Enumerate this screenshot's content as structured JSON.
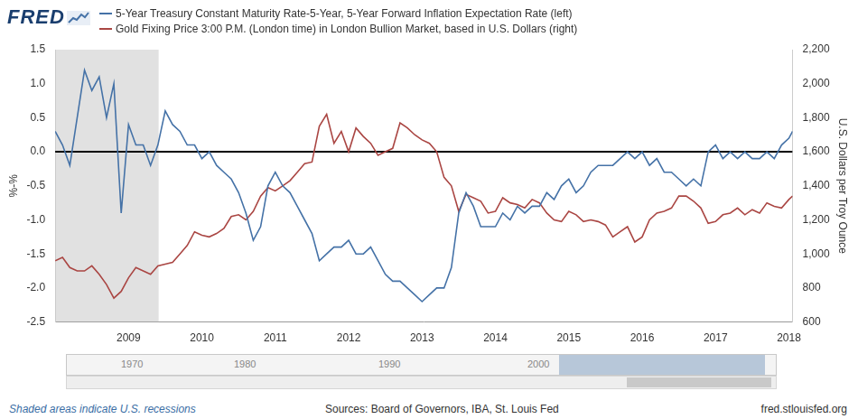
{
  "logo": "FRED",
  "chart_data": {
    "type": "line",
    "legend": "top",
    "grid": false,
    "x": [
      2008.0,
      2008.1,
      2008.2,
      2008.3,
      2008.4,
      2008.5,
      2008.6,
      2008.7,
      2008.8,
      2008.9,
      2009.0,
      2009.1,
      2009.2,
      2009.3,
      2009.4,
      2009.5,
      2009.6,
      2009.7,
      2009.8,
      2009.9,
      2010.0,
      2010.1,
      2010.2,
      2010.3,
      2010.4,
      2010.5,
      2010.6,
      2010.7,
      2010.8,
      2010.9,
      2011.0,
      2011.1,
      2011.2,
      2011.3,
      2011.4,
      2011.5,
      2011.6,
      2011.7,
      2011.8,
      2011.9,
      2012.0,
      2012.1,
      2012.2,
      2012.3,
      2012.4,
      2012.5,
      2012.6,
      2012.7,
      2012.8,
      2012.9,
      2013.0,
      2013.1,
      2013.2,
      2013.3,
      2013.4,
      2013.5,
      2013.6,
      2013.7,
      2013.8,
      2013.9,
      2014.0,
      2014.1,
      2014.2,
      2014.3,
      2014.4,
      2014.5,
      2014.6,
      2014.7,
      2014.8,
      2014.9,
      2015.0,
      2015.1,
      2015.2,
      2015.3,
      2015.4,
      2015.5,
      2015.6,
      2015.7,
      2015.8,
      2015.9,
      2016.0,
      2016.1,
      2016.2,
      2016.3,
      2016.4,
      2016.5,
      2016.6,
      2016.7,
      2016.8,
      2016.9,
      2017.0,
      2017.1,
      2017.2,
      2017.3,
      2017.4,
      2017.5,
      2017.6,
      2017.7,
      2017.8,
      2017.9,
      2018.0,
      2018.05
    ],
    "xlim": [
      2008.0,
      2018.05
    ],
    "xticks": [
      2009,
      2010,
      2011,
      2012,
      2013,
      2014,
      2015,
      2016,
      2017,
      2018
    ],
    "y_label": "%-%",
    "ylim": [
      -2.5,
      1.5
    ],
    "yticks": [
      -2.5,
      {
        "value": -2,
        "label": "-2.0"
      },
      -1.5,
      {
        "value": -1,
        "label": "-1.0"
      },
      -0.5,
      {
        "value": 0,
        "label": "0.0"
      },
      0.5,
      {
        "value": 1,
        "label": "1.0"
      },
      1.5
    ],
    "y2_label": "U.S. Dollars per Troy Ounce",
    "y2lim": [
      600,
      2200
    ],
    "y2ticks": [
      600,
      800,
      {
        "value": 1000,
        "label": "1,000"
      },
      {
        "value": 1200,
        "label": "1,200"
      },
      {
        "value": 1400,
        "label": "1,400"
      },
      {
        "value": 1600,
        "label": "1,600"
      },
      {
        "value": 1800,
        "label": "1,800"
      },
      {
        "value": 2000,
        "label": "2,000"
      },
      {
        "value": 2200,
        "label": "2,200"
      }
    ],
    "reference_line": 0,
    "recessions": [
      [
        2008.0,
        2009.41
      ]
    ],
    "recession_note": "Shaded areas indicate U.S. recessions",
    "series": [
      {
        "name": "5-Year Treasury Constant Maturity Rate-5-Year, 5-Year Forward Inflation Expectation Rate (left)",
        "color": "#4572a7",
        "axis": "y",
        "values": [
          0.3,
          0.1,
          -0.2,
          0.5,
          1.2,
          0.9,
          1.1,
          0.5,
          1.0,
          -0.9,
          0.4,
          0.1,
          0.1,
          -0.2,
          0.1,
          0.6,
          0.4,
          0.3,
          0.1,
          0.1,
          -0.1,
          0.0,
          -0.2,
          -0.3,
          -0.4,
          -0.6,
          -0.9,
          -1.3,
          -1.1,
          -0.5,
          -0.3,
          -0.5,
          -0.6,
          -0.8,
          -1.0,
          -1.2,
          -1.6,
          -1.5,
          -1.4,
          -1.4,
          -1.3,
          -1.5,
          -1.5,
          -1.4,
          -1.6,
          -1.8,
          -1.9,
          -1.9,
          -2.0,
          -2.1,
          -2.2,
          -2.1,
          -2.0,
          -2.0,
          -1.7,
          -0.9,
          -0.6,
          -0.8,
          -1.1,
          -1.1,
          -1.1,
          -0.9,
          -1.0,
          -0.8,
          -0.9,
          -0.8,
          -0.8,
          -0.6,
          -0.7,
          -0.5,
          -0.4,
          -0.6,
          -0.5,
          -0.3,
          -0.2,
          -0.2,
          -0.2,
          -0.1,
          0.0,
          -0.1,
          0.0,
          -0.2,
          -0.1,
          -0.3,
          -0.3,
          -0.4,
          -0.5,
          -0.4,
          -0.5,
          0.0,
          0.1,
          -0.1,
          0.0,
          -0.1,
          0.0,
          -0.1,
          -0.1,
          0.0,
          -0.1,
          0.1,
          0.2,
          0.3
        ]
      },
      {
        "name": "Gold Fixing Price 3:00 P.M. (London time) in London Bullion Market, based in U.S. Dollars (right)",
        "color": "#aa4643",
        "axis": "y2",
        "values": [
          960,
          980,
          920,
          900,
          900,
          930,
          880,
          820,
          740,
          780,
          860,
          920,
          900,
          880,
          930,
          940,
          950,
          1000,
          1050,
          1130,
          1110,
          1100,
          1120,
          1150,
          1220,
          1230,
          1200,
          1250,
          1340,
          1390,
          1370,
          1400,
          1430,
          1480,
          1530,
          1540,
          1750,
          1820,
          1650,
          1720,
          1600,
          1740,
          1690,
          1650,
          1580,
          1600,
          1620,
          1770,
          1740,
          1700,
          1670,
          1650,
          1600,
          1450,
          1400,
          1250,
          1350,
          1330,
          1310,
          1240,
          1250,
          1330,
          1300,
          1290,
          1270,
          1320,
          1300,
          1240,
          1200,
          1190,
          1250,
          1230,
          1190,
          1200,
          1190,
          1170,
          1100,
          1130,
          1160,
          1070,
          1100,
          1200,
          1240,
          1250,
          1270,
          1340,
          1340,
          1310,
          1270,
          1180,
          1190,
          1230,
          1240,
          1270,
          1230,
          1260,
          1240,
          1300,
          1280,
          1270,
          1320,
          1340
        ]
      }
    ]
  },
  "navigator": {
    "labels": [
      {
        "text": "1970"
      },
      {
        "text": "1980"
      },
      {
        "text": "1990"
      },
      {
        "text": "2000"
      }
    ]
  },
  "footer": {
    "sources": "Sources: Board of Governors, IBA, St. Louis Fed",
    "site": "fred.stlouisfed.org"
  }
}
